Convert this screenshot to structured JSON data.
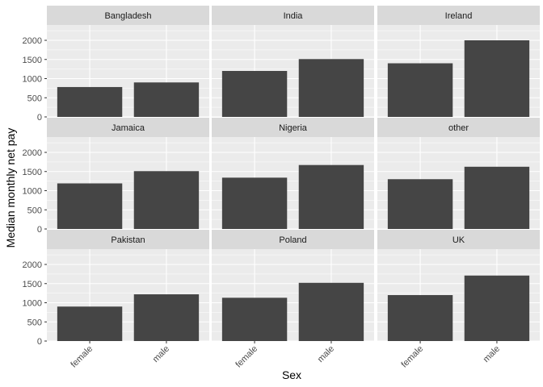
{
  "chart_data": {
    "type": "bar",
    "facet_layout": "3x3 grid",
    "title": "",
    "xlabel": "Sex",
    "ylabel": "Median monthly net pay",
    "ylim": [
      0,
      2400
    ],
    "yticks": [
      "0",
      "500",
      "1000",
      "1500",
      "2000"
    ],
    "categories": [
      "female",
      "male"
    ],
    "grid": true,
    "legend": "none",
    "colors": {
      "bar": "#454545",
      "panel_background": "#ebebeb",
      "strip_background": "#d9d9d9",
      "gridline": "#ffffff"
    },
    "facets": [
      {
        "label": "Bangladesh",
        "values": [
          780,
          900
        ]
      },
      {
        "label": "India",
        "values": [
          1200,
          1510
        ]
      },
      {
        "label": "Ireland",
        "values": [
          1400,
          2000
        ]
      },
      {
        "label": "Jamaica",
        "values": [
          1190,
          1510
        ]
      },
      {
        "label": "Nigeria",
        "values": [
          1340,
          1670
        ]
      },
      {
        "label": "other",
        "values": [
          1300,
          1625
        ]
      },
      {
        "label": "Pakistan",
        "values": [
          900,
          1220
        ]
      },
      {
        "label": "Poland",
        "values": [
          1130,
          1520
        ]
      },
      {
        "label": "UK",
        "values": [
          1200,
          1710
        ]
      }
    ]
  }
}
